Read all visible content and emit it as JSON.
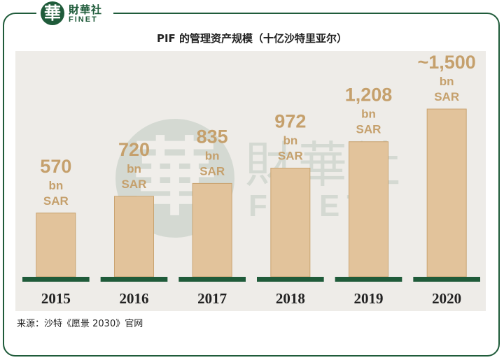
{
  "logo": {
    "seal_glyph": "華",
    "name_cn": "財華社",
    "name_en": "FINET"
  },
  "chart_data": {
    "type": "bar",
    "title": "PIF 的管理资产规模（十亿沙特里亚尔）",
    "categories": [
      "2015",
      "2016",
      "2017",
      "2018",
      "2019",
      "2020"
    ],
    "values": [
      570,
      720,
      835,
      972,
      1208,
      1500
    ],
    "value_labels": [
      "570",
      "720",
      "835",
      "972",
      "1,208",
      "~1,500"
    ],
    "unit_line1": "bn",
    "unit_line2": "SAR",
    "ylim": [
      0,
      1500
    ],
    "xlabel": "",
    "ylabel": "",
    "grid": false,
    "colors": {
      "bar": "#e2c39b",
      "bar_stroke": "#c9a370",
      "label": "#c5a06c",
      "baseline": "#1f5b3a",
      "tick": "#222222"
    }
  },
  "source": "来源：沙特《愿景 2030》官网"
}
